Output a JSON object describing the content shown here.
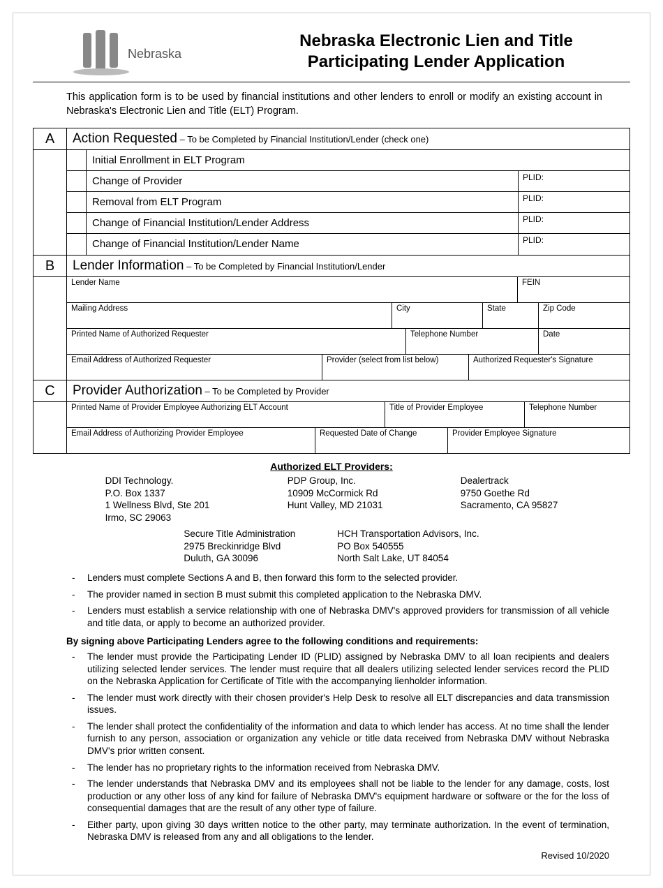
{
  "logo_text": "Nebraska",
  "title_line1": "Nebraska Electronic Lien and Title",
  "title_line2": "Participating Lender Application",
  "intro": "This application form is to be used by financial institutions and other lenders to enroll or modify an existing account in Nebraska's Electronic Lien and Title (ELT) Program.",
  "sectionA": {
    "letter": "A",
    "title": "Action Requested",
    "sub": " – To be Completed by Financial Institution/Lender (check one)",
    "rows": [
      {
        "label": "Initial Enrollment in ELT Program",
        "plid": false
      },
      {
        "label": "Change of Provider",
        "plid": true
      },
      {
        "label": "Removal from ELT Program",
        "plid": true
      },
      {
        "label": "Change of Financial Institution/Lender Address",
        "plid": true
      },
      {
        "label": "Change of Financial Institution/Lender Name",
        "plid": true
      }
    ],
    "plid_label": "PLID:"
  },
  "sectionB": {
    "letter": "B",
    "title": "Lender Information",
    "sub": " – To be Completed by Financial Institution/Lender",
    "fields": {
      "lender_name": "Lender Name",
      "fein": "FEIN",
      "mailing": "Mailing Address",
      "city": "City",
      "state": "State",
      "zip": "Zip Code",
      "printed_req": "Printed Name of Authorized Requester",
      "phone": "Telephone Number",
      "date": "Date",
      "email_req": "Email Address of Authorized Requester",
      "provider_sel": "Provider (select from list below)",
      "sig": "Authorized Requester's Signature"
    }
  },
  "sectionC": {
    "letter": "C",
    "title": "Provider Authorization",
    "sub": " – To be Completed by Provider",
    "fields": {
      "printed_emp": "Printed Name of Provider Employee Authorizing ELT Account",
      "title_emp": "Title of Provider Employee",
      "phone": "Telephone Number",
      "email_emp": "Email Address of Authorizing Provider Employee",
      "req_date": "Requested Date of Change",
      "emp_sig": "Provider Employee Signature"
    }
  },
  "providers_heading": "Authorized ELT Providers:",
  "providers_row1": [
    "DDI Technology.\nP.O. Box 1337\n1 Wellness Blvd, Ste 201\nIrmo, SC  29063",
    "PDP Group, Inc.\n10909 McCormick Rd\nHunt Valley, MD  21031",
    "Dealertrack\n9750 Goethe Rd\nSacramento, CA  95827"
  ],
  "providers_row2": [
    "Secure Title Administration\n2975 Breckinridge Blvd\nDuluth, GA  30096",
    "HCH Transportation Advisors, Inc.\nPO Box 540555\nNorth Salt Lake, UT  84054"
  ],
  "bullets1": [
    "Lenders must complete Sections A and B, then forward this form to the selected provider.",
    "The provider named in section B must submit this completed application to the Nebraska DMV.",
    "Lenders must establish a service relationship with one of Nebraska DMV's approved providers for transmission of all vehicle and title data, or apply to become an authorized provider."
  ],
  "conditions_heading": "By signing above Participating Lenders agree to the following conditions and requirements:",
  "bullets2": [
    "The lender must provide the Participating Lender ID (PLID) assigned by Nebraska DMV to all loan recipients and dealers utilizing selected lender services.  The lender must require that all dealers utilizing selected lender services record the PLID on the Nebraska Application for Certificate of Title with the accompanying lienholder information.",
    "The lender must work directly with their chosen provider's Help Desk to resolve all ELT discrepancies and data transmission issues.",
    "The lender shall protect the confidentiality of the information and data to which lender has access.  At no time shall the lender furnish to any person, association or organization any vehicle or title data received from Nebraska DMV without Nebraska DMV's prior written consent.",
    "The lender has no proprietary rights to the information received from Nebraska DMV.",
    "The lender understands that Nebraska DMV and its employees shall not be liable to the lender for any damage, costs, lost production or any other loss of any kind for failure of Nebraska DMV's equipment hardware or software or the for the loss of consequential damages that are the result of any other type of failure.",
    "Either party, upon giving 30 days written notice to the other party, may terminate authorization.  In the event of termination, Nebraska DMV is released from any and all obligations to the lender."
  ],
  "revised": "Revised 10/2020"
}
